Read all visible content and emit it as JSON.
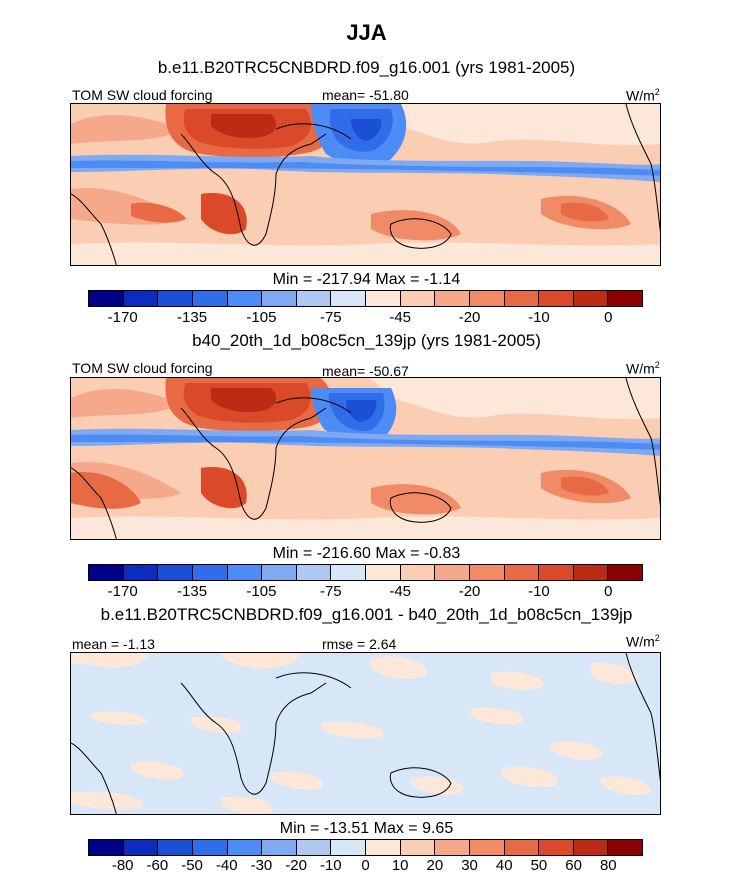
{
  "page_title": "JJA",
  "colors": {
    "scale_a": [
      "#00008b",
      "#0a2dbf",
      "#1a4fd6",
      "#2f6ee8",
      "#4d8cf5",
      "#7fa9f0",
      "#aec8f2",
      "#d8e7f7",
      "#fde7d8",
      "#fbcdb3",
      "#f6a98a",
      "#f08a67",
      "#e86a45",
      "#da4a2a",
      "#bd2b15",
      "#8b0000"
    ],
    "scale_b": [
      "#00008b",
      "#0a2dbf",
      "#1a4fd6",
      "#2f6ee8",
      "#4d8cf5",
      "#7fa9f0",
      "#aec8f2",
      "#d8e7f7",
      "#fde7d8",
      "#fbcdb3",
      "#f6a98a",
      "#f08a67",
      "#e86a45",
      "#da4a2a",
      "#bd2b15",
      "#8b0000"
    ],
    "scale_diff": [
      "#00008b",
      "#0a2dbf",
      "#1a4fd6",
      "#2f6ee8",
      "#4d8cf5",
      "#7fa9f0",
      "#aec8f2",
      "#d8e7f7",
      "#fde7d8",
      "#fbcdb3",
      "#f6a98a",
      "#f08a67",
      "#e86a45",
      "#da4a2a",
      "#bd2b15",
      "#8b0000"
    ]
  },
  "panels": [
    {
      "subtitle": "b.e11.B20TRC5CNBDRD.f09_g16.001 (yrs 1981-2005)",
      "left_label": "TOM SW cloud forcing",
      "center_label": "mean= -51.80",
      "units": "W/m",
      "units_exp": "2",
      "minmax": "Min = -217.94 Max =  -1.14",
      "ticks": [
        "-170",
        "-135",
        "-105",
        "-75",
        "-45",
        "-20",
        "-10",
        "0"
      ]
    },
    {
      "subtitle": "b40_20th_1d_b08c5cn_139jp (yrs 1981-2005)",
      "left_label": "TOM SW cloud forcing",
      "center_label": "mean= -50.67",
      "units": "W/m",
      "units_exp": "2",
      "minmax": "Min = -216.60 Max =  -0.83",
      "ticks": [
        "-170",
        "-135",
        "-105",
        "-75",
        "-45",
        "-20",
        "-10",
        "0"
      ]
    },
    {
      "subtitle": "b.e11.B20TRC5CNBDRD.f09_g16.001 - b40_20th_1d_b08c5cn_139jp",
      "left_label": "mean =  -1.13",
      "center_label": "rmse =   2.64",
      "units": "W/m",
      "units_exp": "2",
      "minmax": "Min = -13.51 Max =   9.65",
      "ticks": [
        "-80",
        "-60",
        "-50",
        "-40",
        "-30",
        "-20",
        "-10",
        "0",
        "10",
        "20",
        "30",
        "40",
        "50",
        "60",
        "80"
      ]
    }
  ]
}
